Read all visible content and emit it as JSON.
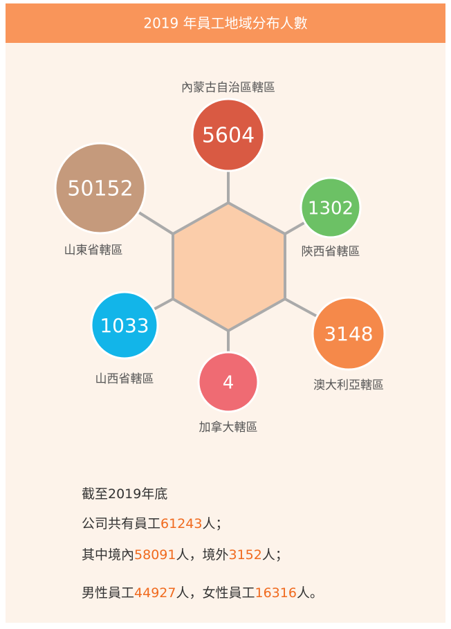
{
  "header": {
    "title": "2019 年員工地域分布人數"
  },
  "nodes": [
    {
      "label": "內蒙古自治區轄區",
      "value": "5604",
      "color": "#d95a43"
    },
    {
      "label": "陝西省轄區",
      "value": "1302",
      "color": "#6cc165"
    },
    {
      "label": "澳大利亞轄區",
      "value": "3148",
      "color": "#f5894a"
    },
    {
      "label": "加拿大轄區",
      "value": "4",
      "color": "#ef6b73"
    },
    {
      "label": "山西省轄區",
      "value": "1033",
      "color": "#12b5e9"
    },
    {
      "label": "山東省轄區",
      "value": "50152",
      "color": "#c59a7c"
    }
  ],
  "summary": [
    [
      "截至2019年底"
    ],
    [
      "公司共有員工",
      "61243",
      "人；"
    ],
    [
      "其中境內",
      "58091",
      "人，境外",
      "3152",
      "人；"
    ],
    [
      "男性員工",
      "44927",
      "人，女性員工",
      "16316",
      "人。"
    ]
  ]
}
